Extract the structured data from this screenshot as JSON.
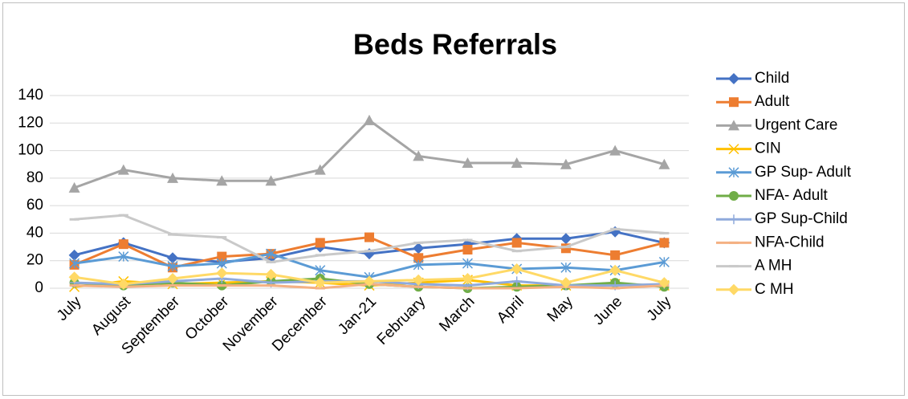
{
  "chart_data": {
    "type": "line",
    "title": "Beds Referrals",
    "categories": [
      "July",
      "August",
      "September",
      "October",
      "November",
      "December",
      "Jan-21",
      "February",
      "March",
      "April",
      "May",
      "June",
      "July"
    ],
    "ylim": [
      0,
      140
    ],
    "yticks": [
      0,
      20,
      40,
      60,
      80,
      100,
      120,
      140
    ],
    "grid": true,
    "legend": "right",
    "series": [
      {
        "name": "Child",
        "color": "#4472c4",
        "marker": "diamond",
        "values": [
          24,
          33,
          22,
          19,
          22,
          30,
          25,
          29,
          32,
          36,
          36,
          41,
          33
        ]
      },
      {
        "name": "Adult",
        "color": "#ed7d31",
        "marker": "square",
        "values": [
          17,
          32,
          15,
          23,
          25,
          33,
          37,
          22,
          28,
          33,
          29,
          24,
          33
        ]
      },
      {
        "name": "Urgent Care",
        "color": "#a5a5a5",
        "marker": "triangle",
        "values": [
          73,
          86,
          80,
          78,
          78,
          86,
          122,
          96,
          91,
          91,
          90,
          100,
          90
        ]
      },
      {
        "name": "CIN",
        "color": "#ffc000",
        "marker": "x",
        "values": [
          1,
          5,
          3,
          4,
          5,
          4,
          2,
          4,
          6,
          2,
          2,
          3,
          2
        ]
      },
      {
        "name": "GP Sup- Adult",
        "color": "#5b9bd5",
        "marker": "star",
        "values": [
          18,
          23,
          16,
          18,
          25,
          13,
          8,
          17,
          18,
          14,
          15,
          13,
          19
        ]
      },
      {
        "name": "NFA- Adult",
        "color": "#70ad47",
        "marker": "circle",
        "values": [
          4,
          2,
          4,
          2,
          5,
          7,
          3,
          1,
          0,
          1,
          2,
          4,
          1
        ]
      },
      {
        "name": "GP Sup-Child",
        "color": "#8faadc",
        "marker": "plus",
        "values": [
          4,
          3,
          5,
          7,
          4,
          5,
          5,
          3,
          2,
          5,
          2,
          2,
          3
        ]
      },
      {
        "name": "NFA-Child",
        "color": "#f4b183",
        "marker": "dash",
        "values": [
          2,
          1,
          2,
          2,
          2,
          0,
          3,
          1,
          0,
          0,
          1,
          0,
          2
        ]
      },
      {
        "name": "A MH",
        "color": "#c9c9c9",
        "marker": "dash",
        "values": [
          50,
          53,
          39,
          37,
          19,
          24,
          27,
          33,
          35,
          27,
          30,
          43,
          40
        ]
      },
      {
        "name": "C MH",
        "color": "#ffd966",
        "marker": "diamond",
        "values": [
          8,
          3,
          7,
          11,
          10,
          4,
          5,
          6,
          7,
          14,
          4,
          13,
          4
        ]
      }
    ]
  }
}
